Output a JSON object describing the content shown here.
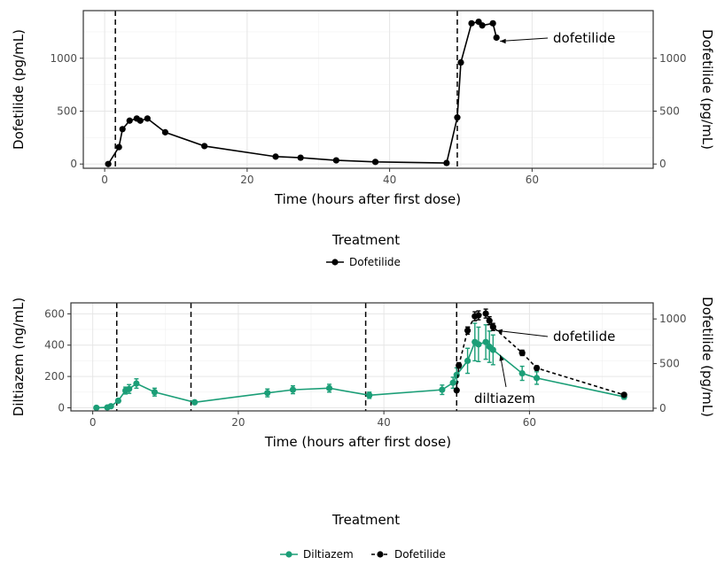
{
  "chart_data": [
    {
      "type": "line",
      "xlabel": "Time (hours after first dose)",
      "ylabel": "Dofetilide (pg/mL)",
      "y2label": "Dofetilide (pg/mL)",
      "xlim": [
        -3,
        77
      ],
      "ylim": [
        -40,
        1450
      ],
      "xticks": [
        0,
        20,
        40,
        60
      ],
      "yticks": [
        0,
        500,
        1000
      ],
      "grid": true,
      "dose_times": [
        1.5,
        49.5
      ],
      "legend": {
        "title": "Treatment",
        "position": "bottom",
        "entries": [
          "Dofetilide"
        ]
      },
      "annotations": [
        {
          "text": "dofetilide",
          "x": 55,
          "y": 1195
        }
      ],
      "series": [
        {
          "name": "Dofetilide",
          "color": "#000000",
          "dash": "solid",
          "axis": "left",
          "x": [
            0.5,
            2,
            2.5,
            3.5,
            4.5,
            5,
            6,
            8.5,
            14,
            24,
            27.5,
            32.5,
            38,
            48,
            49.5,
            50,
            51.5,
            52.5,
            53,
            54.5,
            55
          ],
          "y": [
            0,
            160,
            330,
            410,
            430,
            410,
            430,
            300,
            170,
            70,
            60,
            35,
            20,
            10,
            440,
            960,
            1330,
            1345,
            1310,
            1330,
            1195
          ]
        }
      ]
    },
    {
      "type": "line",
      "xlabel": "Time (hours after first dose)",
      "ylabel": "Diltiazem (ng/mL)",
      "y2label": "Dofetilide (pg/mL)",
      "xlim": [
        -3,
        77
      ],
      "ylim": [
        -20,
        670
      ],
      "y2lim": [
        -30,
        1180
      ],
      "xticks": [
        0,
        20,
        40,
        60
      ],
      "yticks": [
        0,
        200,
        400,
        600
      ],
      "y2ticks": [
        0,
        500,
        1000
      ],
      "grid": true,
      "dose_times": [
        3.3,
        13.5,
        37.5,
        50
      ],
      "legend": {
        "title": "Treatment",
        "position": "bottom",
        "entries": [
          "Diltiazem",
          "Dofetilide"
        ]
      },
      "annotations": [
        {
          "text": "dofetilide",
          "x": 55,
          "y2": 910
        },
        {
          "text": "diltiazem",
          "x": 55.5,
          "y": 360
        }
      ],
      "series": [
        {
          "name": "Diltiazem",
          "color": "#1b9e77",
          "dash": "solid",
          "axis": "left",
          "x": [
            0.5,
            2,
            2.5,
            3.5,
            4.5,
            5,
            6,
            8.5,
            14,
            24,
            27.5,
            32.5,
            38,
            48,
            49.5,
            50,
            51.5,
            52.5,
            53,
            54,
            54.5,
            55,
            59,
            61,
            73
          ],
          "y": [
            0,
            2,
            10,
            45,
            110,
            120,
            155,
            100,
            35,
            95,
            115,
            125,
            80,
            115,
            160,
            210,
            300,
            420,
            405,
            420,
            390,
            370,
            220,
            190,
            70
          ],
          "err": [
            5,
            6,
            10,
            12,
            22,
            28,
            30,
            25,
            12,
            25,
            25,
            25,
            20,
            30,
            35,
            45,
            80,
            120,
            110,
            110,
            100,
            95,
            45,
            40,
            15
          ]
        },
        {
          "name": "Dofetilide",
          "color": "#000000",
          "dash": "dashed",
          "axis": "right",
          "x": [
            50,
            50.3,
            51.5,
            52.5,
            53,
            54,
            54.5,
            55,
            59,
            61,
            73
          ],
          "y": [
            200,
            480,
            870,
            1030,
            1040,
            1060,
            980,
            910,
            620,
            450,
            150
          ],
          "err": [
            20,
            30,
            40,
            50,
            50,
            50,
            45,
            40,
            30,
            25,
            15
          ]
        }
      ]
    }
  ]
}
